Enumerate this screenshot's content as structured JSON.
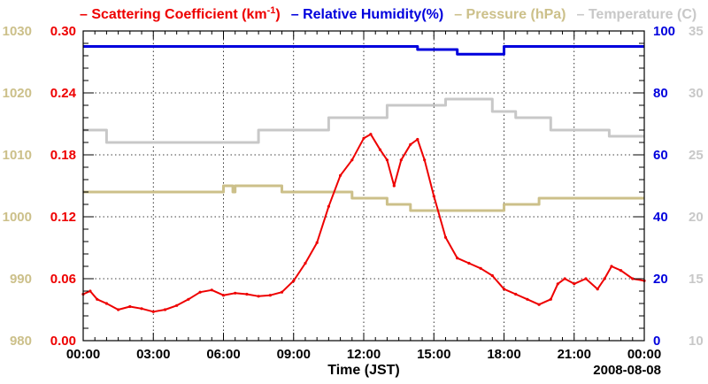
{
  "chart_data": {
    "type": "line",
    "date_label": "2008-08-08",
    "xlabel": "Time (JST)",
    "x_ticks": [
      "00:00",
      "03:00",
      "06:00",
      "09:00",
      "12:00",
      "15:00",
      "18:00",
      "21:00",
      "00:00"
    ],
    "x_range_hours": [
      0,
      24
    ],
    "legend": [
      {
        "key": "scattering",
        "dash": "–",
        "text": "Scattering Coefficient (km",
        "sup": "-1",
        "tail": ")",
        "color": "#ee0000"
      },
      {
        "key": "humidity",
        "dash": "–",
        "text": "Relative Humidity(%)",
        "color": "#0000dd"
      },
      {
        "key": "pressure",
        "dash": "–",
        "text": "Pressure (hPa)",
        "color": "#ccc08a"
      },
      {
        "key": "temperature",
        "dash": "–",
        "text": "Temperature (C)",
        "color": "#c8c8c8"
      }
    ],
    "axes": {
      "pressure": {
        "ticks": [
          "980",
          "990",
          "1000",
          "1010",
          "1020",
          "1030"
        ],
        "range": [
          980,
          1030
        ],
        "color": "#ccc08a"
      },
      "scattering": {
        "ticks": [
          "0.00",
          "0.06",
          "0.12",
          "0.18",
          "0.24",
          "0.30"
        ],
        "range": [
          0,
          0.3
        ],
        "color": "#ee0000"
      },
      "humidity": {
        "ticks": [
          "0",
          "20",
          "40",
          "60",
          "80",
          "100"
        ],
        "range": [
          0,
          100
        ],
        "color": "#0000dd"
      },
      "temperature": {
        "ticks": [
          "10",
          "15",
          "20",
          "25",
          "30",
          "35"
        ],
        "range": [
          10,
          35
        ],
        "color": "#c8c8c8"
      }
    },
    "series": [
      {
        "name": "Scattering Coefficient",
        "axis": "scattering",
        "color": "#ee0000",
        "points": [
          [
            0,
            0.045
          ],
          [
            0.3,
            0.048
          ],
          [
            0.6,
            0.04
          ],
          [
            1,
            0.036
          ],
          [
            1.5,
            0.03
          ],
          [
            2,
            0.033
          ],
          [
            2.5,
            0.031
          ],
          [
            3,
            0.028
          ],
          [
            3.5,
            0.03
          ],
          [
            4,
            0.034
          ],
          [
            4.5,
            0.04
          ],
          [
            5,
            0.047
          ],
          [
            5.5,
            0.049
          ],
          [
            6,
            0.044
          ],
          [
            6.5,
            0.046
          ],
          [
            7,
            0.045
          ],
          [
            7.5,
            0.043
          ],
          [
            8,
            0.044
          ],
          [
            8.5,
            0.047
          ],
          [
            9,
            0.058
          ],
          [
            9.5,
            0.075
          ],
          [
            10,
            0.095
          ],
          [
            10.5,
            0.13
          ],
          [
            11,
            0.16
          ],
          [
            11.5,
            0.175
          ],
          [
            12,
            0.196
          ],
          [
            12.3,
            0.2
          ],
          [
            12.7,
            0.185
          ],
          [
            13,
            0.175
          ],
          [
            13.3,
            0.15
          ],
          [
            13.6,
            0.175
          ],
          [
            14,
            0.19
          ],
          [
            14.3,
            0.195
          ],
          [
            14.6,
            0.175
          ],
          [
            15,
            0.14
          ],
          [
            15.5,
            0.1
          ],
          [
            16,
            0.08
          ],
          [
            16.5,
            0.075
          ],
          [
            17,
            0.07
          ],
          [
            17.5,
            0.063
          ],
          [
            18,
            0.05
          ],
          [
            18.5,
            0.045
          ],
          [
            19,
            0.04
          ],
          [
            19.5,
            0.035
          ],
          [
            20,
            0.04
          ],
          [
            20.3,
            0.055
          ],
          [
            20.6,
            0.06
          ],
          [
            21,
            0.055
          ],
          [
            21.5,
            0.06
          ],
          [
            22,
            0.05
          ],
          [
            22.3,
            0.06
          ],
          [
            22.6,
            0.072
          ],
          [
            23,
            0.068
          ],
          [
            23.5,
            0.06
          ],
          [
            24,
            0.058
          ]
        ]
      },
      {
        "name": "Relative Humidity",
        "axis": "humidity",
        "color": "#0000dd",
        "points": [
          [
            0,
            95
          ],
          [
            14.3,
            95
          ],
          [
            14.3,
            94
          ],
          [
            16,
            94
          ],
          [
            16,
            92.5
          ],
          [
            18,
            92.5
          ],
          [
            18,
            95
          ],
          [
            24,
            95
          ]
        ]
      },
      {
        "name": "Pressure",
        "axis": "pressure",
        "color": "#ccc08a",
        "points": [
          [
            0,
            1004
          ],
          [
            6,
            1004
          ],
          [
            6,
            1005
          ],
          [
            6.4,
            1005
          ],
          [
            6.4,
            1004
          ],
          [
            6.5,
            1004
          ],
          [
            6.5,
            1005
          ],
          [
            8.5,
            1005
          ],
          [
            8.5,
            1004
          ],
          [
            11.5,
            1004
          ],
          [
            11.5,
            1003
          ],
          [
            13,
            1003
          ],
          [
            13,
            1002
          ],
          [
            14,
            1002
          ],
          [
            14,
            1001
          ],
          [
            18,
            1001
          ],
          [
            18,
            1002
          ],
          [
            19.5,
            1002
          ],
          [
            19.5,
            1003
          ],
          [
            24,
            1003
          ]
        ]
      },
      {
        "name": "Temperature",
        "axis": "temperature",
        "color": "#c8c8c8",
        "points": [
          [
            0,
            27
          ],
          [
            1,
            27
          ],
          [
            1,
            26
          ],
          [
            7.5,
            26
          ],
          [
            7.5,
            27
          ],
          [
            10.5,
            27
          ],
          [
            10.5,
            28
          ],
          [
            13,
            28
          ],
          [
            13,
            29
          ],
          [
            15.5,
            29
          ],
          [
            15.5,
            29.5
          ],
          [
            17.5,
            29.5
          ],
          [
            17.5,
            28.5
          ],
          [
            18.5,
            28.5
          ],
          [
            18.5,
            28
          ],
          [
            20,
            28
          ],
          [
            20,
            27
          ],
          [
            22.5,
            27
          ],
          [
            22.5,
            26.5
          ],
          [
            24,
            26.5
          ]
        ]
      }
    ]
  }
}
